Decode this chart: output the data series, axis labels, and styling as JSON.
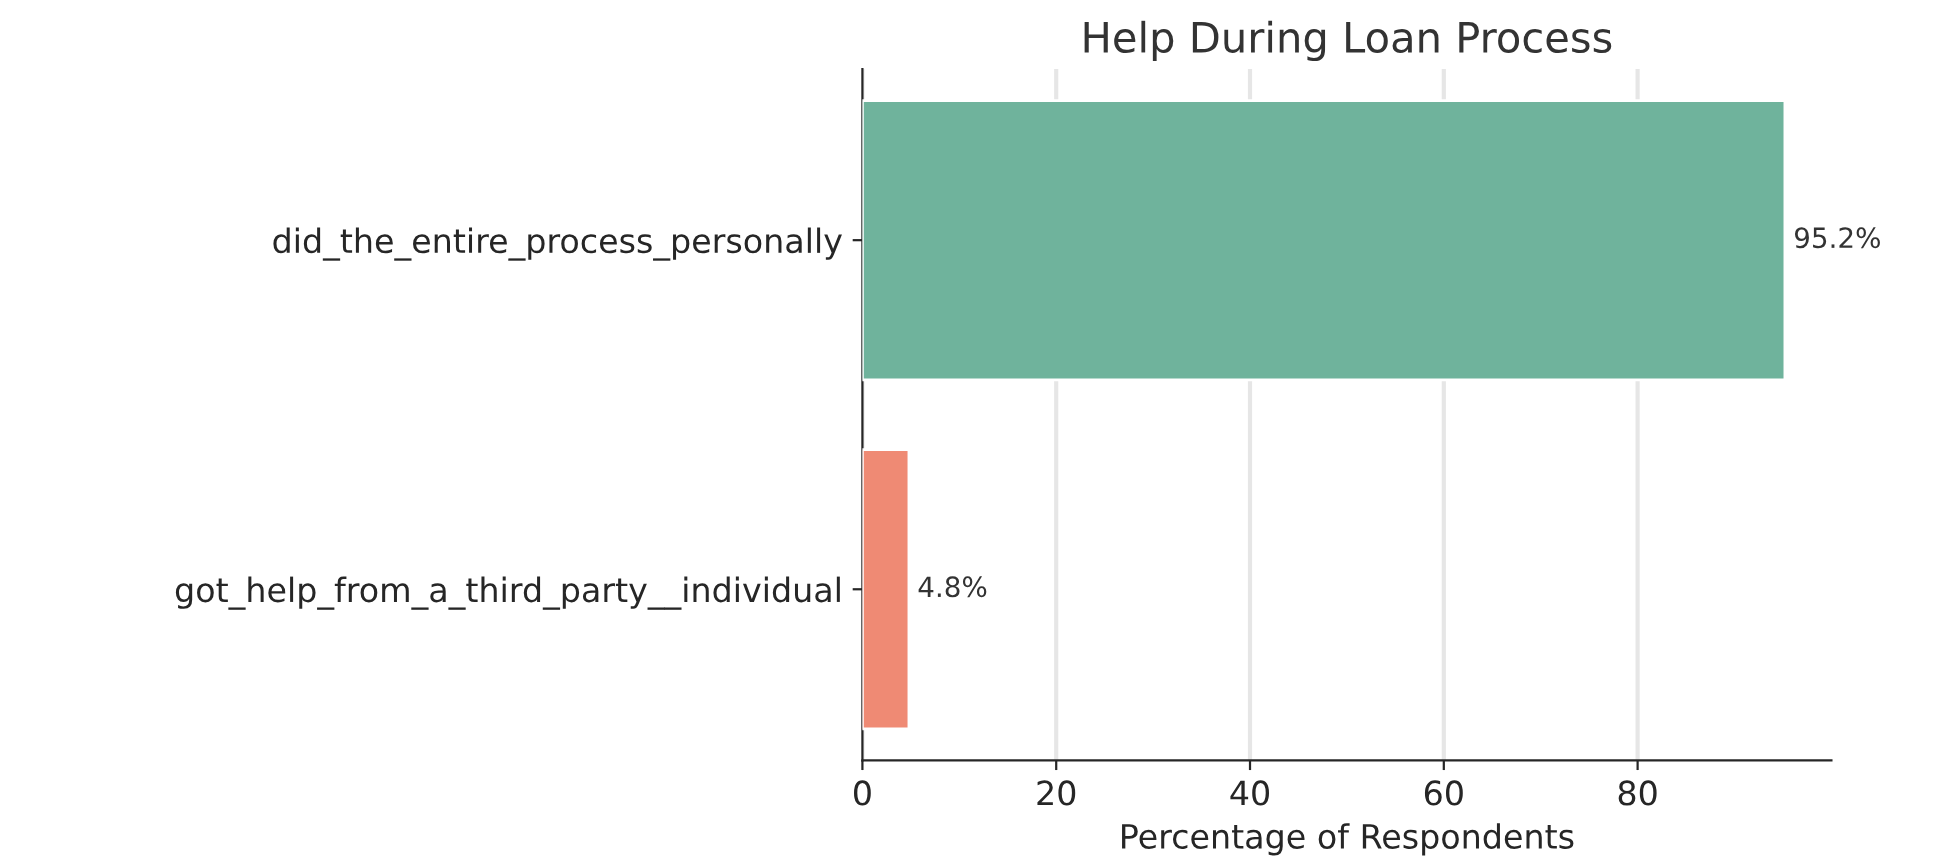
{
  "chart_data": {
    "type": "bar",
    "orientation": "horizontal",
    "title": "Help During Loan Process",
    "xlabel": "Percentage of Respondents",
    "categories": [
      "did_the_entire_process_personally",
      "got_help_from_a_third_party__individual"
    ],
    "values": [
      95.2,
      4.8
    ],
    "colors": [
      "#6fb39c",
      "#ef8a74"
    ],
    "value_labels": [
      "95.2%",
      "4.8%"
    ],
    "xlim": [
      0,
      100
    ],
    "xticks": [
      0,
      20,
      40,
      60,
      80
    ],
    "grid": "x",
    "legend": false
  }
}
